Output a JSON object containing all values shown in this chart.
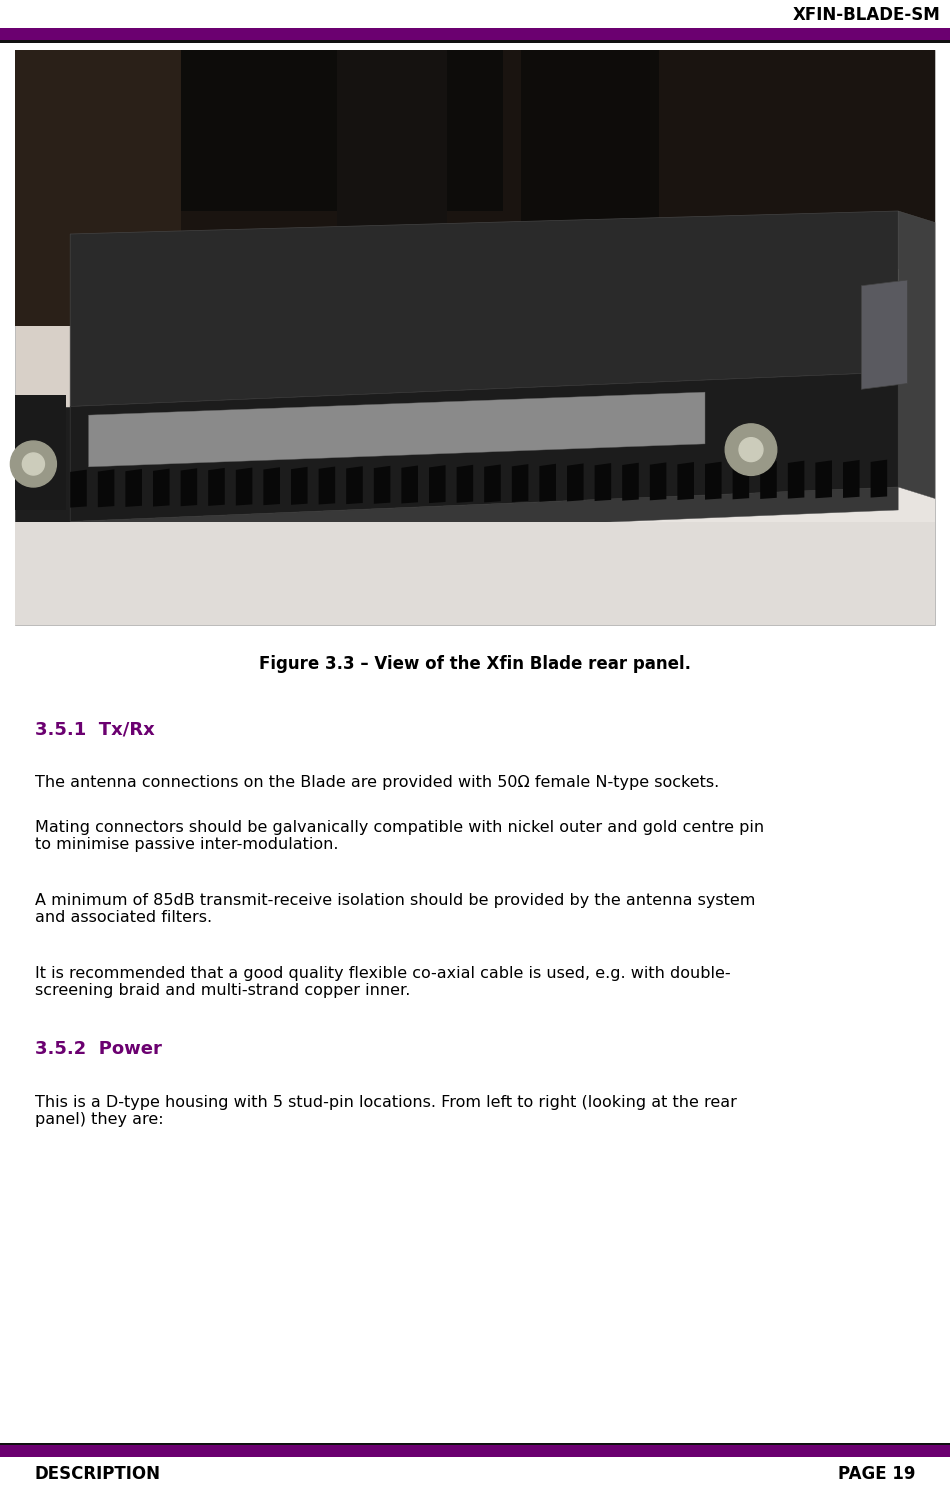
{
  "header_title": "XFIN-BLADE-SM",
  "header_line_color": "#6B0070",
  "figure_caption": "Figure 3.3 – View of the Xfin Blade rear panel.",
  "section_351_title": "3.5.1  Tx/Rx",
  "section_351_color": "#6B0070",
  "section_351_para1": "The antenna connections on the Blade are provided with 50Ω female N-type sockets.",
  "section_351_para2": "Mating connectors should be galvanically compatible with nickel outer and gold centre pin\nto minimise passive inter-modulation.",
  "section_351_para3": "A minimum of 85dB transmit-receive isolation should be provided by the antenna system\nand associated filters.",
  "section_351_para4": "It is recommended that a good quality flexible co-axial cable is used, e.g. with double-\nscreening braid and multi-strand copper inner.",
  "section_352_title": "3.5.2  Power",
  "section_352_color": "#6B0070",
  "section_352_para1": "This is a D-type housing with 5 stud-pin locations. From left to right (looking at the rear\npanel) they are:",
  "footer_left": "DESCRIPTION",
  "footer_right": "PAGE 19",
  "footer_line_color": "#6B0070",
  "bg_color": "#ffffff",
  "text_color": "#000000",
  "body_fontsize": 11.5,
  "header_fontsize": 12,
  "section_title_fontsize": 13,
  "footer_fontsize": 12
}
